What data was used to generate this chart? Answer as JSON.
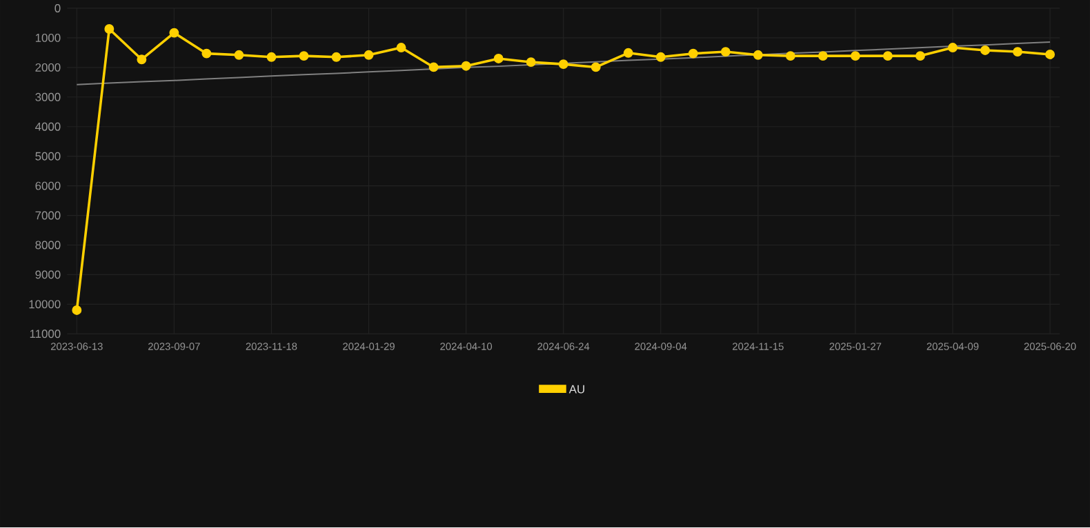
{
  "chart_data": {
    "type": "line",
    "categories": [
      "2023-06-13",
      null,
      null,
      "2023-09-07",
      null,
      null,
      "2023-11-18",
      null,
      null,
      "2024-01-29",
      null,
      null,
      "2024-04-10",
      null,
      null,
      "2024-06-24",
      null,
      null,
      "2024-09-04",
      null,
      null,
      "2024-11-15",
      null,
      null,
      "2025-01-27",
      null,
      null,
      "2025-04-09",
      null,
      null,
      "2025-06-20"
    ],
    "series": [
      {
        "name": "AU",
        "color": "#ffd000",
        "marker": "circle",
        "values": [
          10200,
          700,
          1730,
          830,
          1530,
          1580,
          1650,
          1610,
          1650,
          1580,
          1330,
          1990,
          1950,
          1700,
          1820,
          1890,
          1990,
          1510,
          1650,
          1530,
          1470,
          1580,
          1610,
          1610,
          1610,
          1610,
          1610,
          1330,
          1420,
          1470,
          1560
        ]
      },
      {
        "type": "line",
        "color": "#808080",
        "marker": "none",
        "values": [
          2580,
          2530,
          2480,
          2440,
          2390,
          2340,
          2290,
          2240,
          2200,
          2150,
          2100,
          2050,
          2000,
          1960,
          1910,
          1860,
          1810,
          1760,
          1720,
          1670,
          1620,
          1570,
          1520,
          1480,
          1430,
          1380,
          1330,
          1280,
          1240,
          1190,
          1140
        ]
      }
    ],
    "ylim": [
      11000,
      0
    ],
    "yticks": [
      0,
      1000,
      2000,
      3000,
      4000,
      5000,
      6000,
      7000,
      8000,
      9000,
      10000,
      11000
    ],
    "grid": true,
    "legend": "bottom",
    "line_style": "solid"
  }
}
